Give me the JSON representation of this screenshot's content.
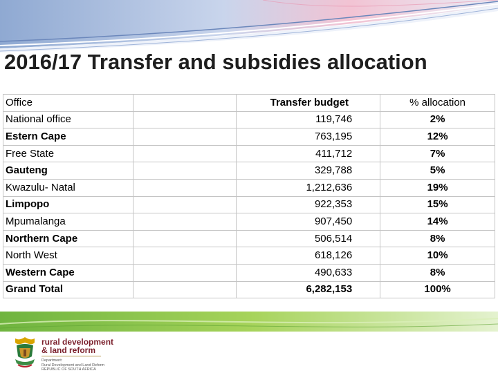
{
  "title": "2016/17 Transfer and subsidies allocation",
  "table": {
    "header": {
      "office": "Office",
      "budget": "Transfer budget",
      "pct": "% allocation"
    },
    "rows": [
      {
        "office": "National office",
        "budget": "119,746",
        "pct": "2%",
        "bold": false
      },
      {
        "office": "Estern Cape",
        "budget": "763,195",
        "pct": "12%",
        "bold": true
      },
      {
        "office": "Free State",
        "budget": "411,712",
        "pct": "7%",
        "bold": false
      },
      {
        "office": "Gauteng",
        "budget": "329,788",
        "pct": "5%",
        "bold": true
      },
      {
        "office": "Kwazulu- Natal",
        "budget": "1,212,636",
        "pct": "19%",
        "bold": false
      },
      {
        "office": "Limpopo",
        "budget": "922,353",
        "pct": "15%",
        "bold": true
      },
      {
        "office": "Mpumalanga",
        "budget": "907,450",
        "pct": "14%",
        "bold": false
      },
      {
        "office": "Northern Cape",
        "budget": "506,514",
        "pct": "8%",
        "bold": true
      },
      {
        "office": "North West",
        "budget": "618,126",
        "pct": "10%",
        "bold": false
      },
      {
        "office": "Western Cape",
        "budget": "490,633",
        "pct": "8%",
        "bold": true
      },
      {
        "office": "Grand Total",
        "budget": "6,282,153",
        "pct": "100%",
        "bold": true
      }
    ]
  },
  "footer": {
    "brand_line1": "rural development",
    "brand_line2": "& land reform",
    "dept_line1": "Department:",
    "dept_line2": "Rural Development and Land Reform",
    "dept_line3": "REPUBLIC OF SOUTH AFRICA"
  },
  "colors": {
    "banner_blue": "#7f9ccb",
    "banner_pink": "#f2b8cc",
    "stripe_green": "#8cc63f",
    "brand_maroon": "#7a1f2b",
    "title_text": "#1e1e1e",
    "grid_line": "#c4c4c4"
  }
}
